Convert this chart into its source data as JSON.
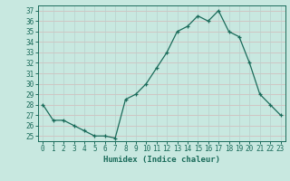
{
  "x": [
    0,
    1,
    2,
    3,
    4,
    5,
    6,
    7,
    8,
    9,
    10,
    11,
    12,
    13,
    14,
    15,
    16,
    17,
    18,
    19,
    20,
    21,
    22,
    23
  ],
  "y": [
    28,
    26.5,
    26.5,
    26,
    25.5,
    25,
    25,
    24.8,
    28.5,
    29,
    30,
    31.5,
    33,
    35,
    35.5,
    36.5,
    36,
    37,
    35,
    34.5,
    32,
    29,
    28,
    27
  ],
  "line_color": "#1a6b5a",
  "marker_color": "#1a6b5a",
  "bg_color": "#c8e8e0",
  "grid_color_h": "#d4b8b8",
  "grid_color_v": "#b8d0cc",
  "xlabel": "Humidex (Indice chaleur)",
  "ylim": [
    24.5,
    37.5
  ],
  "yticks": [
    25,
    26,
    27,
    28,
    29,
    30,
    31,
    32,
    33,
    34,
    35,
    36,
    37
  ],
  "xlim": [
    -0.5,
    23.5
  ],
  "xticks": [
    0,
    1,
    2,
    3,
    4,
    5,
    6,
    7,
    8,
    9,
    10,
    11,
    12,
    13,
    14,
    15,
    16,
    17,
    18,
    19,
    20,
    21,
    22,
    23
  ],
  "label_fontsize": 6.5,
  "tick_fontsize": 5.5
}
